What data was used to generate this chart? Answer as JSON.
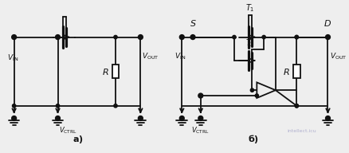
{
  "bg_color": "#eeeeee",
  "line_color": "#111111",
  "fig_width": 4.38,
  "fig_height": 1.92,
  "dpi": 100,
  "watermark": "intellect.icu"
}
